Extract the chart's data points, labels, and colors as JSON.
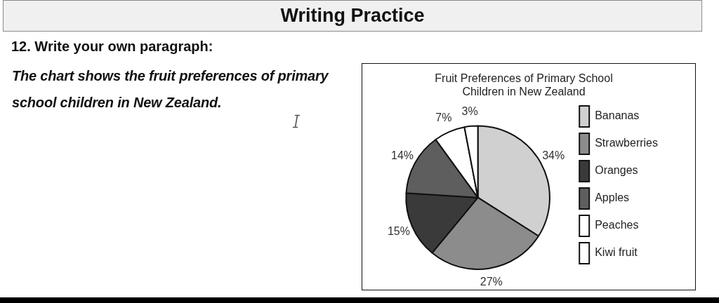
{
  "chart_data": {
    "type": "pie",
    "title": "Fruit Preferences of Primary School Children in New Zealand",
    "categories": [
      "Bananas",
      "Strawberries",
      "Oranges",
      "Apples",
      "Peaches",
      "Kiwi fruit"
    ],
    "values": [
      34,
      27,
      15,
      14,
      7,
      3
    ],
    "value_labels": [
      "34%",
      "27%",
      "15%",
      "14%",
      "7%",
      "3%"
    ],
    "colors": [
      "#d0d0d0",
      "#8c8c8c",
      "#3a3a3a",
      "#5e5e5e",
      "#ffffff",
      "#ffffff"
    ],
    "legend": "right",
    "annotations": [
      "Writing Practice",
      "12. Write your own paragraph:",
      "The chart shows the fruit preferences of primary school children in New Zealand."
    ]
  }
}
